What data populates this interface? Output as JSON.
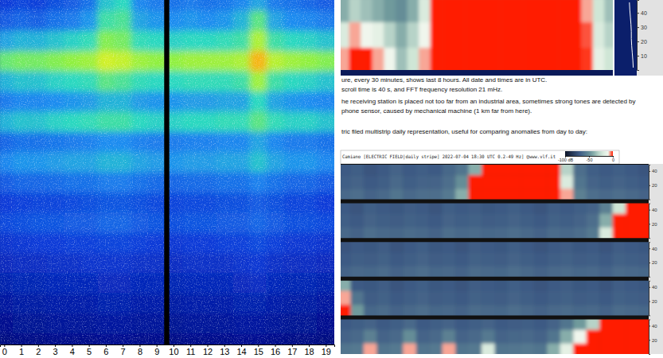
{
  "chart_data": [
    {
      "type": "heatmap",
      "tick_labels": "x",
      "x": [
        0,
        1,
        2,
        3,
        4,
        5,
        6,
        7,
        8,
        9,
        10,
        11,
        12,
        13,
        14,
        15,
        16,
        17,
        18,
        19
      ],
      "xlim": [
        -0.25,
        19.5
      ],
      "xticks": [
        0,
        1,
        2,
        3,
        4,
        5,
        6,
        7,
        8,
        9,
        10,
        11,
        12,
        13,
        14,
        15,
        16,
        17,
        18,
        19
      ],
      "color_range": [
        0,
        100
      ],
      "gap": [
        9.45,
        9.75
      ],
      "cells": [
        [
          30,
          32,
          31,
          34,
          36,
          40,
          52,
          55,
          44,
          42,
          40,
          42,
          40,
          41,
          44,
          48,
          42,
          40,
          38,
          36
        ],
        [
          36,
          38,
          37,
          40,
          42,
          46,
          58,
          60,
          48,
          46,
          45,
          46,
          45,
          46,
          50,
          62,
          48,
          45,
          44,
          42
        ],
        [
          48,
          50,
          50,
          52,
          54,
          56,
          68,
          66,
          56,
          55,
          54,
          55,
          55,
          56,
          58,
          74,
          58,
          55,
          54,
          52
        ],
        [
          64,
          66,
          66,
          68,
          70,
          72,
          80,
          78,
          72,
          70,
          70,
          72,
          72,
          72,
          74,
          90,
          76,
          72,
          70,
          68
        ],
        [
          50,
          52,
          52,
          54,
          55,
          56,
          62,
          60,
          56,
          55,
          55,
          56,
          56,
          56,
          58,
          72,
          58,
          55,
          54,
          52
        ],
        [
          42,
          44,
          44,
          45,
          46,
          47,
          50,
          50,
          47,
          46,
          46,
          47,
          47,
          48,
          48,
          55,
          48,
          46,
          45,
          44
        ],
        [
          50,
          52,
          52,
          54,
          55,
          56,
          58,
          58,
          55,
          54,
          54,
          55,
          55,
          56,
          56,
          62,
          56,
          54,
          54,
          52
        ],
        [
          38,
          40,
          40,
          41,
          42,
          43,
          45,
          45,
          43,
          42,
          42,
          43,
          43,
          44,
          44,
          48,
          44,
          42,
          42,
          40
        ],
        [
          44,
          46,
          46,
          47,
          48,
          48,
          50,
          50,
          48,
          47,
          46,
          47,
          47,
          48,
          48,
          52,
          48,
          46,
          46,
          44
        ],
        [
          36,
          38,
          38,
          39,
          40,
          40,
          42,
          42,
          40,
          39,
          38,
          39,
          39,
          40,
          40,
          43,
          40,
          38,
          38,
          36
        ],
        [
          30,
          31,
          32,
          32,
          33,
          34,
          35,
          35,
          34,
          33,
          32,
          33,
          33,
          34,
          34,
          36,
          34,
          32,
          32,
          30
        ],
        [
          33,
          34,
          35,
          35,
          36,
          36,
          38,
          38,
          36,
          35,
          34,
          35,
          35,
          36,
          36,
          38,
          36,
          34,
          34,
          33
        ],
        [
          28,
          29,
          30,
          30,
          31,
          31,
          32,
          32,
          31,
          30,
          29,
          30,
          30,
          31,
          31,
          33,
          31,
          29,
          29,
          28
        ],
        [
          25,
          26,
          26,
          27,
          27,
          28,
          28,
          28,
          27,
          27,
          26,
          27,
          27,
          27,
          28,
          29,
          27,
          26,
          26,
          25
        ],
        [
          22,
          23,
          23,
          24,
          24,
          24,
          25,
          25,
          24,
          24,
          23,
          24,
          24,
          24,
          25,
          26,
          24,
          23,
          23,
          22
        ],
        [
          19,
          20,
          20,
          21,
          21,
          21,
          22,
          22,
          21,
          21,
          20,
          21,
          21,
          21,
          22,
          22,
          21,
          20,
          20,
          19
        ],
        [
          16,
          17,
          17,
          18,
          18,
          18,
          19,
          19,
          18,
          18,
          17,
          18,
          18,
          18,
          19,
          19,
          18,
          17,
          17,
          16
        ],
        [
          13,
          14,
          14,
          15,
          15,
          15,
          16,
          16,
          15,
          15,
          14,
          15,
          15,
          15,
          16,
          16,
          15,
          14,
          14,
          13
        ]
      ]
    },
    {
      "type": "heatmap",
      "tick_labels": "y",
      "ylim": [
        0,
        49
      ],
      "yticks": [
        10,
        20,
        30,
        40
      ],
      "color_range": [
        -100,
        0
      ],
      "cells": [
        [
          -40,
          -30,
          -35,
          -40,
          -45,
          -50,
          -40,
          -20,
          0,
          0,
          0,
          0,
          0,
          0,
          0,
          0,
          0,
          0,
          0,
          0,
          0,
          -5,
          -25,
          -35
        ],
        [
          -20,
          -5,
          -10,
          -15,
          -30,
          -40,
          -30,
          -10,
          0,
          0,
          0,
          0,
          0,
          0,
          0,
          0,
          0,
          0,
          0,
          0,
          0,
          -2,
          -20,
          -30
        ],
        [
          -5,
          0,
          0,
          -5,
          -10,
          -35,
          -25,
          -5,
          0,
          0,
          0,
          0,
          0,
          0,
          0,
          0,
          0,
          0,
          0,
          0,
          0,
          -1,
          -15,
          -25
        ]
      ],
      "profile": [
        -30,
        -28,
        -25,
        -22,
        -20,
        -20,
        -18,
        -15,
        -12,
        -10
      ],
      "profile_lim": [
        -100,
        0
      ]
    },
    {
      "type": "heatmap",
      "tick_labels": "y",
      "title": "Camiano [ELECTRIC FIELD|daily stripe] 2022-07-04 18:30 UTC 0.2-49 Hz] @www.vlf.it",
      "colorbar": {
        "range": [
          -100,
          0
        ],
        "ticks": [
          {
            "value": -100,
            "label": "-100 dB"
          },
          -50,
          0
        ]
      },
      "ylim": [
        0,
        49
      ],
      "yticks": [
        20,
        40
      ],
      "strips": [
        [
          [
            -70,
            -68,
            -72,
            -70,
            -66,
            -70,
            -68,
            -70,
            -65,
            -60,
            -40,
            0,
            0,
            0,
            0,
            0,
            0,
            -30,
            -62,
            -68,
            -70,
            -68,
            -70,
            -72
          ],
          [
            -68,
            -66,
            -70,
            -68,
            -64,
            -68,
            -66,
            -66,
            -62,
            -50,
            0,
            0,
            0,
            0,
            0,
            0,
            0,
            -20,
            -60,
            -66,
            -68,
            -66,
            -68,
            -70
          ],
          [
            -64,
            -62,
            -66,
            -64,
            -60,
            -64,
            -62,
            -62,
            -58,
            -40,
            0,
            0,
            0,
            0,
            0,
            0,
            0,
            -5,
            -55,
            -62,
            -64,
            -62,
            -64,
            -66
          ]
        ],
        [
          [
            -70,
            -72,
            -68,
            -70,
            -71,
            -69,
            -70,
            -72,
            -68,
            -70,
            -69,
            -71,
            -70,
            -68,
            -70,
            -72,
            -69,
            -70,
            -68,
            -66,
            -55,
            -25,
            0,
            0
          ],
          [
            -68,
            -70,
            -66,
            -68,
            -69,
            -67,
            -68,
            -70,
            -66,
            -68,
            -67,
            -69,
            -68,
            -66,
            -68,
            -70,
            -67,
            -68,
            -66,
            -62,
            -40,
            0,
            0,
            0
          ],
          [
            -64,
            -66,
            -62,
            -64,
            -65,
            -63,
            -64,
            -66,
            -62,
            -64,
            -63,
            -65,
            -64,
            -62,
            -64,
            -66,
            -63,
            -64,
            -62,
            -58,
            -20,
            0,
            0,
            0
          ]
        ],
        [
          [
            -72,
            -70,
            -71,
            -69,
            -72,
            -70,
            -68,
            -71,
            -70,
            -72,
            -69,
            -70,
            -71,
            -68,
            -70,
            -72,
            -70,
            -69,
            -71,
            -70,
            -72,
            -69,
            -70,
            -71
          ],
          [
            -70,
            -68,
            -69,
            -67,
            -70,
            -68,
            -66,
            -69,
            -68,
            -70,
            -67,
            -68,
            -69,
            -66,
            -68,
            -70,
            -68,
            -67,
            -69,
            -68,
            -70,
            -67,
            -68,
            -69
          ],
          [
            -66,
            -64,
            -65,
            -63,
            -66,
            -64,
            -62,
            -65,
            -64,
            -66,
            -63,
            -64,
            -65,
            -62,
            -64,
            -66,
            -64,
            -63,
            -65,
            -64,
            -66,
            -63,
            -64,
            -65
          ]
        ],
        [
          [
            -40,
            -70,
            -71,
            -69,
            -72,
            -70,
            -68,
            -71,
            -70,
            -72,
            -69,
            -70,
            -71,
            -68,
            -70,
            -72,
            -70,
            -69,
            -71,
            -70,
            -72,
            -69,
            -70,
            -71
          ],
          [
            -5,
            -60,
            -69,
            -67,
            -70,
            -68,
            -66,
            -69,
            -68,
            -70,
            -67,
            -68,
            -69,
            -66,
            -68,
            -70,
            -68,
            -67,
            -69,
            -68,
            -70,
            -67,
            -68,
            -69
          ],
          [
            0,
            -45,
            -65,
            -63,
            -66,
            -64,
            -62,
            -65,
            -64,
            -66,
            -63,
            -64,
            -65,
            -62,
            -64,
            -66,
            -64,
            -63,
            -65,
            -64,
            -66,
            -63,
            -64,
            -65
          ]
        ],
        [
          [
            -70,
            -68,
            -66,
            -70,
            -68,
            -64,
            -70,
            -68,
            -66,
            -70,
            -68,
            -66,
            -70,
            -69,
            -68,
            -70,
            -66,
            -60,
            -45,
            -30,
            0,
            0,
            0,
            0
          ],
          [
            -66,
            -64,
            -55,
            -66,
            -64,
            -50,
            -66,
            -64,
            -55,
            -66,
            -64,
            -58,
            -66,
            -65,
            -64,
            -66,
            -60,
            -40,
            -10,
            0,
            0,
            0,
            0,
            0
          ],
          [
            -60,
            -58,
            -5,
            -60,
            -58,
            -5,
            -60,
            -58,
            -5,
            -60,
            -58,
            -20,
            -60,
            -59,
            -58,
            -60,
            -40,
            -15,
            0,
            0,
            0,
            0,
            0,
            0
          ]
        ]
      ]
    }
  ],
  "document": {
    "lines": [
      "ure, every 30 minutes, shows last 8 hours. All date and times are in UTC.",
      "scroll time is 40 s, and FFT frequency resolution 21 mHz.",
      "he receiving station is placed not too far from an industrial area, sometimes strong tones are detected by",
      "phone sensor, caused by mechanical machine (1 km far from here).",
      "tric filed multistrip daily representation, useful for comparing anomalies from day to day:"
    ]
  }
}
